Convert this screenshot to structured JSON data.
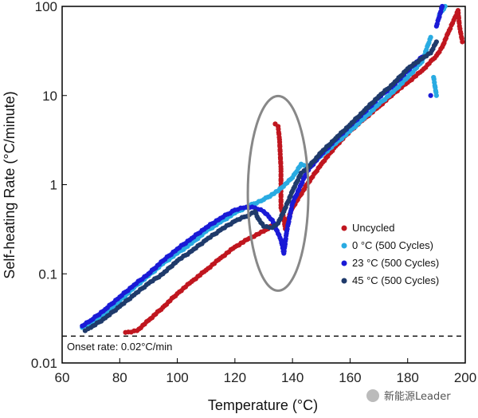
{
  "chart_data": {
    "type": "scatter",
    "title": "",
    "xlabel": "Temperature (°C)",
    "ylabel": "Self-heating Rate (°C/minute)",
    "xlim": [
      60,
      200
    ],
    "ylim": [
      0.01,
      100
    ],
    "y_scale": "log",
    "x_ticks": [
      "60",
      "80",
      "100",
      "120",
      "140",
      "160",
      "180",
      "200"
    ],
    "y_ticks": [
      "0.01",
      "0.1",
      "1",
      "10",
      "100"
    ],
    "grid": false,
    "legend_position": "right-middle",
    "series": [
      {
        "name": "Uncycled",
        "color": "#c0161f",
        "points": [
          [
            82,
            0.022
          ],
          [
            86,
            0.023
          ],
          [
            90,
            0.03
          ],
          [
            95,
            0.042
          ],
          [
            100,
            0.06
          ],
          [
            105,
            0.082
          ],
          [
            110,
            0.11
          ],
          [
            115,
            0.15
          ],
          [
            120,
            0.2
          ],
          [
            125,
            0.25
          ],
          [
            130,
            0.3
          ],
          [
            133,
            0.35
          ],
          [
            134,
            4.8
          ],
          [
            135,
            4.5
          ],
          [
            135.5,
            3.2
          ],
          [
            136,
            1.5
          ],
          [
            136,
            0.9
          ],
          [
            136,
            0.55
          ],
          [
            137,
            0.42
          ],
          [
            137.5,
            0.32
          ],
          [
            138,
            0.38
          ],
          [
            140,
            0.55
          ],
          [
            145,
            1.0
          ],
          [
            150,
            1.7
          ],
          [
            155,
            2.7
          ],
          [
            160,
            4.0
          ],
          [
            165,
            5.5
          ],
          [
            170,
            7.5
          ],
          [
            175,
            10.5
          ],
          [
            180,
            14.0
          ],
          [
            185,
            19.0
          ],
          [
            190,
            28.0
          ],
          [
            192,
            35.0
          ],
          [
            194,
            50.0
          ],
          [
            196,
            70.0
          ],
          [
            197.5,
            90.0
          ],
          [
            198,
            60.0
          ],
          [
            199,
            40.0
          ]
        ]
      },
      {
        "name": "0 °C (500 Cycles)",
        "color": "#29abe2",
        "points": [
          [
            67,
            0.025
          ],
          [
            70,
            0.028
          ],
          [
            75,
            0.036
          ],
          [
            80,
            0.05
          ],
          [
            85,
            0.07
          ],
          [
            90,
            0.095
          ],
          [
            95,
            0.13
          ],
          [
            100,
            0.17
          ],
          [
            105,
            0.22
          ],
          [
            110,
            0.3
          ],
          [
            115,
            0.38
          ],
          [
            120,
            0.48
          ],
          [
            125,
            0.58
          ],
          [
            130,
            0.68
          ],
          [
            135,
            0.85
          ],
          [
            140,
            1.2
          ],
          [
            143,
            1.7
          ],
          [
            145,
            1.55
          ],
          [
            150,
            2.1
          ],
          [
            155,
            2.9
          ],
          [
            160,
            4.0
          ],
          [
            165,
            5.6
          ],
          [
            170,
            8.0
          ],
          [
            175,
            11.0
          ],
          [
            180,
            16.0
          ],
          [
            185,
            24.0
          ],
          [
            188,
            45.0
          ],
          [
            189,
            16.0
          ],
          [
            190,
            10.0
          ],
          [
            191,
            80.0
          ],
          [
            193,
            100.0
          ]
        ]
      },
      {
        "name": "23 °C (500 Cycles)",
        "color": "#1a1ad6",
        "points": [
          [
            67,
            0.026
          ],
          [
            70,
            0.03
          ],
          [
            75,
            0.04
          ],
          [
            80,
            0.055
          ],
          [
            85,
            0.075
          ],
          [
            90,
            0.1
          ],
          [
            95,
            0.14
          ],
          [
            100,
            0.19
          ],
          [
            105,
            0.25
          ],
          [
            110,
            0.33
          ],
          [
            115,
            0.42
          ],
          [
            120,
            0.52
          ],
          [
            124,
            0.56
          ],
          [
            127,
            0.55
          ],
          [
            130,
            0.5
          ],
          [
            133,
            0.4
          ],
          [
            136,
            0.24
          ],
          [
            137,
            0.17
          ],
          [
            138,
            0.3
          ],
          [
            140,
            0.62
          ],
          [
            143,
            1.0
          ],
          [
            145,
            1.4
          ],
          [
            150,
            2.2
          ],
          [
            155,
            3.2
          ],
          [
            160,
            4.6
          ],
          [
            165,
            6.5
          ],
          [
            170,
            9.5
          ],
          [
            175,
            13.0
          ],
          [
            180,
            19.0
          ],
          [
            185,
            27.0
          ],
          [
            188,
            10.0
          ],
          [
            190,
            60.0
          ],
          [
            192,
            100.0
          ]
        ]
      },
      {
        "name": "45 °C (500 Cycles)",
        "color": "#1f3a6b",
        "points": [
          [
            68,
            0.023
          ],
          [
            70,
            0.025
          ],
          [
            75,
            0.032
          ],
          [
            80,
            0.043
          ],
          [
            85,
            0.058
          ],
          [
            90,
            0.078
          ],
          [
            95,
            0.1
          ],
          [
            100,
            0.14
          ],
          [
            105,
            0.18
          ],
          [
            110,
            0.24
          ],
          [
            115,
            0.31
          ],
          [
            120,
            0.39
          ],
          [
            125,
            0.46
          ],
          [
            127,
            0.5
          ],
          [
            128,
            0.42
          ],
          [
            130,
            0.34
          ],
          [
            133,
            0.33
          ],
          [
            135,
            0.37
          ],
          [
            137,
            0.5
          ],
          [
            140,
            0.85
          ],
          [
            143,
            1.35
          ],
          [
            145,
            1.5
          ],
          [
            150,
            2.3
          ],
          [
            155,
            3.3
          ],
          [
            160,
            4.7
          ],
          [
            165,
            6.8
          ],
          [
            170,
            9.8
          ],
          [
            175,
            13.5
          ],
          [
            180,
            20.0
          ],
          [
            185,
            26.0
          ],
          [
            188,
            30.0
          ],
          [
            190,
            40.0
          ]
        ]
      }
    ],
    "threshold_line": {
      "value": 0.02,
      "label": "Onset rate: 0.02°C/min"
    },
    "highlight_ellipse": {
      "cx": 135,
      "cy": 0.8
    }
  },
  "watermark": "新能源Leader"
}
